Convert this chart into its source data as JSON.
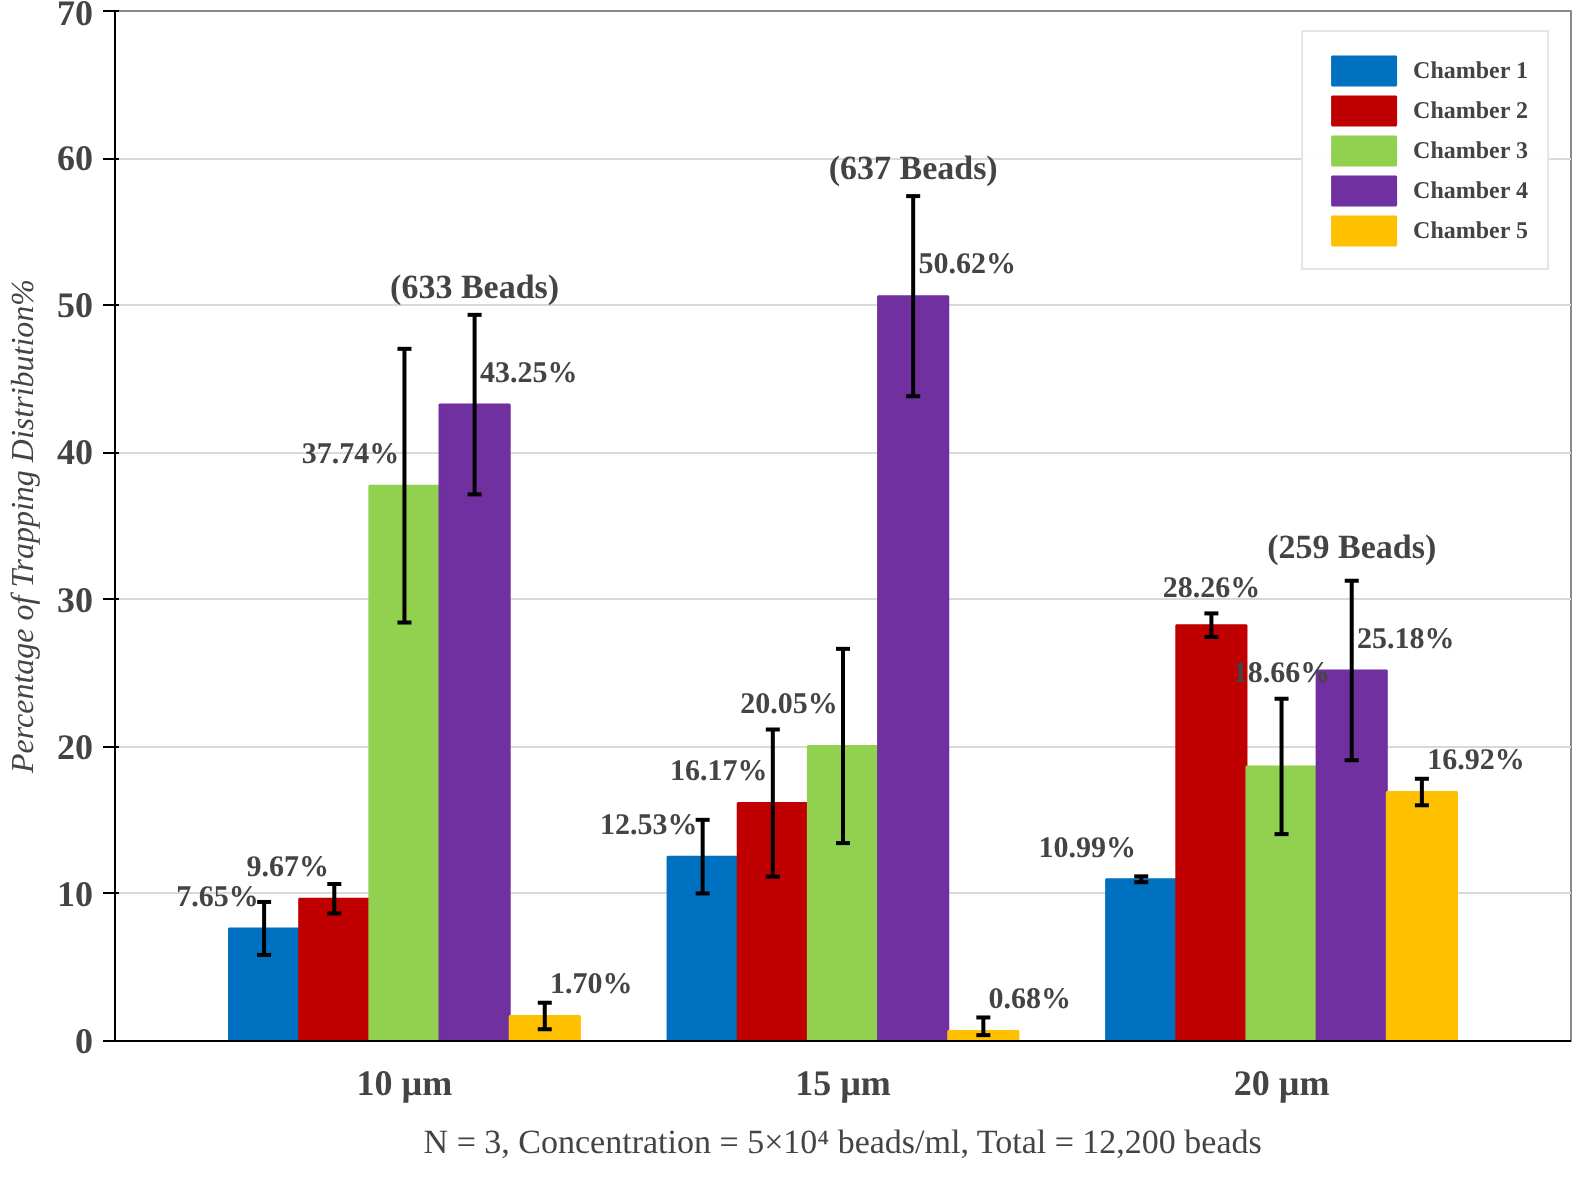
{
  "chart_data": {
    "type": "bar",
    "ylabel": "Percentage of Trapping Distribution%",
    "categories": [
      "10 µm",
      "15 µm",
      "20 µm"
    ],
    "series": [
      {
        "name": "Chamber 1",
        "color": "#0070c0",
        "values": [
          7.65,
          12.53,
          10.99
        ],
        "errors": [
          1.8,
          2.5,
          0.2
        ],
        "value_labels": [
          "7.65%",
          "12.53%",
          "10.99%"
        ]
      },
      {
        "name": "Chamber 2",
        "color": "#c00000",
        "values": [
          9.67,
          16.17,
          28.26
        ],
        "errors": [
          1.0,
          5.0,
          0.8
        ],
        "value_labels": [
          "9.67%",
          "16.17%",
          "28.26%"
        ]
      },
      {
        "name": "Chamber 3",
        "color": "#92d050",
        "values": [
          37.74,
          20.05,
          18.66
        ],
        "errors": [
          9.3,
          6.6,
          4.6
        ],
        "value_labels": [
          "37.74%",
          "20.05%",
          "18.66%"
        ]
      },
      {
        "name": "Chamber 4",
        "color": "#7030a0",
        "values": [
          43.25,
          50.62,
          25.18
        ],
        "errors": [
          6.1,
          6.8,
          6.1
        ],
        "value_labels": [
          "43.25%",
          "50.62%",
          "25.18%"
        ]
      },
      {
        "name": "Chamber 5",
        "color": "#ffc000",
        "values": [
          1.7,
          0.68,
          16.92
        ],
        "errors": [
          0.9,
          [
            0.4,
            1.6
          ],
          0.9
        ],
        "value_labels": [
          "1.70%",
          "0.68%",
          "16.92%"
        ]
      }
    ],
    "ylim": [
      0,
      70
    ],
    "yticks": [
      0,
      10,
      20,
      30,
      40,
      50,
      60,
      70
    ],
    "grid": "y",
    "legend": "top right",
    "annotations": [
      "(633 Beads)",
      "(637 Beads)",
      "(259 Beads)",
      "N = 3, Concentration = 5×10⁴ beads/ml, Total = 12,200 beads"
    ]
  }
}
